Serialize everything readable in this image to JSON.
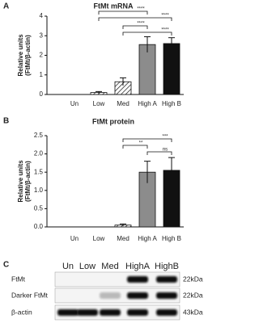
{
  "panel_labels": [
    "A",
    "B",
    "C"
  ],
  "chart_data": [
    {
      "type": "bar",
      "title": "FtMt mRNA",
      "ylabel": [
        "Relative units",
        "(FtMt/β-actin)"
      ],
      "categories": [
        "Un",
        "Low",
        "Med",
        "High A",
        "High B"
      ],
      "values": [
        0,
        0.1,
        0.65,
        2.55,
        2.6
      ],
      "errors": [
        0,
        0.05,
        0.2,
        0.4,
        0.3
      ],
      "colors": [
        "#ffffff",
        "#ffffff",
        "#ffffff",
        "#8c8c8c",
        "#111111"
      ],
      "hatch": [
        false,
        true,
        true,
        false,
        false
      ],
      "ylim": [
        0,
        4
      ],
      "yticks": [
        0,
        1,
        2,
        3,
        4
      ],
      "annotations": [
        "****",
        "****",
        "****",
        "****"
      ]
    },
    {
      "type": "bar",
      "title": "FtMt protein",
      "ylabel": [
        "Relative units",
        "(FtMt/β-actin)"
      ],
      "categories": [
        "Un",
        "Low",
        "Med",
        "High A",
        "High B"
      ],
      "values": [
        0,
        0,
        0.05,
        1.5,
        1.55
      ],
      "errors": [
        0,
        0,
        0.03,
        0.3,
        0.35
      ],
      "colors": [
        "#ffffff",
        "#ffffff",
        "#ffffff",
        "#8c8c8c",
        "#111111"
      ],
      "hatch": [
        false,
        true,
        true,
        false,
        false
      ],
      "ylim": [
        0,
        2.5
      ],
      "yticks": [
        {
          "value": 0,
          "label": "0.0"
        },
        0.5,
        {
          "value": 1,
          "label": "1.0"
        },
        1.5,
        {
          "value": 2,
          "label": "2.0"
        },
        2.5
      ],
      "annotations": [
        "**",
        "***",
        "ns"
      ]
    }
  ],
  "blot": {
    "lanes": [
      "Un",
      "Low",
      "Med",
      "HighA",
      "HighB"
    ],
    "rows": [
      {
        "label": "FtMt",
        "size": "22kDa"
      },
      {
        "label": "Darker FtMt",
        "size": "22kDa"
      },
      {
        "label": "β-actin",
        "size": "43kDa"
      }
    ]
  }
}
